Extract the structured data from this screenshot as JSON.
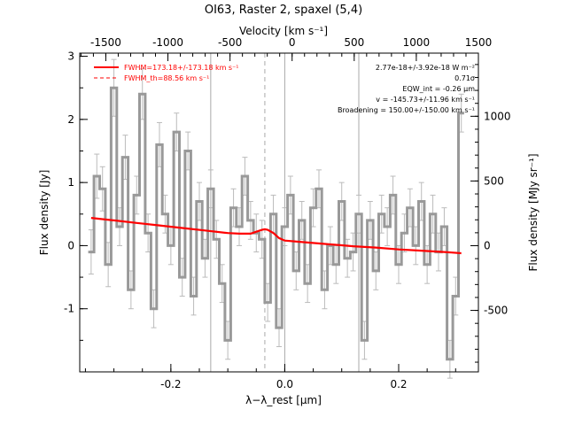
{
  "chart_data": {
    "type": "line",
    "title": "OI63, Raster 2, spaxel (5,4)",
    "top_axis_label": "Velocity [km s⁻¹]",
    "xlabel": "λ−λ_rest [μm]",
    "ylabel_left": "Flux density [Jy]",
    "ylabel_right": "Flux density [MJy sr⁻¹]",
    "xlim": [
      -0.36,
      0.34
    ],
    "ylim": [
      -2.0,
      3.05
    ],
    "top_axis_range": [
      -1710,
      1500
    ],
    "right_axis_range": [
      -975,
      1488
    ],
    "bottom_ticks": [
      "-0.2",
      "0.0",
      "0.2"
    ],
    "bottom_tick_values": [
      -0.2,
      0.0,
      0.2
    ],
    "left_ticks": [
      "-1",
      "0",
      "1",
      "2",
      "3"
    ],
    "left_tick_values": [
      -1,
      0,
      1,
      2,
      3
    ],
    "top_ticks": [
      "-1500",
      "-1000",
      "-500",
      "0",
      "500",
      "1000",
      "1500"
    ],
    "top_tick_values": [
      -1500,
      -1000,
      -500,
      0,
      500,
      1000,
      1500
    ],
    "right_ticks": [
      "-500",
      "0",
      "500",
      "1000"
    ],
    "right_tick_values": [
      -500,
      0,
      500,
      1000
    ],
    "vertical_lines_solid": [
      -0.13,
      0.0,
      0.13
    ],
    "vertical_line_dashed": -0.035,
    "legend": {
      "fwhm": "FWHM=173.18+/-173.18 km s⁻¹",
      "fwhm_th": "FWHM_th=88.56 km s⁻¹"
    },
    "annotations": {
      "flux": "2.77e-18+/-3.92e-18 W m⁻²",
      "sigma": "0.71σ",
      "eqw": "EQW_int = -0.26 μm",
      "velocity": "v = -145.73+/-11.96 km s⁻¹",
      "broadening": "Broadening = 150.00+/-150.00 km s⁻¹"
    },
    "series": [
      {
        "role": "spectrum",
        "color": "#999999",
        "x": [
          -0.34,
          -0.33,
          -0.32,
          -0.31,
          -0.3,
          -0.29,
          -0.28,
          -0.27,
          -0.26,
          -0.25,
          -0.24,
          -0.23,
          -0.22,
          -0.21,
          -0.2,
          -0.19,
          -0.18,
          -0.17,
          -0.16,
          -0.15,
          -0.14,
          -0.13,
          -0.12,
          -0.11,
          -0.1,
          -0.09,
          -0.08,
          -0.07,
          -0.06,
          -0.05,
          -0.04,
          -0.03,
          -0.02,
          -0.01,
          0.0,
          0.01,
          0.02,
          0.03,
          0.04,
          0.05,
          0.06,
          0.07,
          0.08,
          0.09,
          0.1,
          0.11,
          0.12,
          0.13,
          0.14,
          0.15,
          0.16,
          0.17,
          0.18,
          0.19,
          0.2,
          0.21,
          0.22,
          0.23,
          0.24,
          0.25,
          0.26,
          0.27,
          0.28,
          0.29,
          0.3,
          0.31
        ],
        "y": [
          -0.1,
          1.1,
          0.9,
          -0.3,
          2.5,
          0.3,
          1.4,
          -0.7,
          0.8,
          2.4,
          0.2,
          -1.0,
          1.6,
          0.5,
          0.0,
          1.8,
          -0.5,
          1.5,
          -0.8,
          0.7,
          -0.2,
          0.9,
          0.1,
          -0.6,
          -1.5,
          0.6,
          0.3,
          1.1,
          0.4,
          0.2,
          0.1,
          -0.9,
          0.5,
          -1.3,
          0.3,
          0.8,
          -0.4,
          0.4,
          -0.6,
          0.6,
          0.9,
          -0.7,
          0.0,
          -0.3,
          0.7,
          -0.2,
          -0.1,
          0.5,
          -1.5,
          0.4,
          -0.4,
          0.5,
          0.3,
          0.8,
          -0.3,
          0.2,
          0.6,
          0.0,
          0.7,
          -0.3,
          0.5,
          -0.1,
          0.3,
          -1.8,
          -0.8,
          2.1
        ],
        "yerr": [
          0.35,
          0.35,
          0.35,
          0.35,
          0.45,
          0.3,
          0.35,
          0.3,
          0.3,
          0.4,
          0.3,
          0.3,
          0.35,
          0.3,
          0.3,
          0.3,
          0.3,
          0.3,
          0.3,
          0.3,
          0.3,
          0.3,
          0.3,
          0.3,
          0.3,
          0.3,
          0.3,
          0.3,
          0.3,
          0.3,
          0.3,
          0.3,
          0.3,
          0.3,
          0.3,
          0.3,
          0.3,
          0.3,
          0.3,
          0.3,
          0.3,
          0.3,
          0.3,
          0.3,
          0.3,
          0.3,
          0.3,
          0.3,
          0.3,
          0.3,
          0.3,
          0.3,
          0.3,
          0.3,
          0.3,
          0.3,
          0.3,
          0.3,
          0.3,
          0.3,
          0.3,
          0.3,
          0.3,
          0.3,
          0.3,
          0.3
        ]
      },
      {
        "role": "fit",
        "color": "#ff0000",
        "x": [
          -0.34,
          -0.3,
          -0.26,
          -0.22,
          -0.18,
          -0.14,
          -0.1,
          -0.08,
          -0.06,
          -0.05,
          -0.04,
          -0.035,
          -0.03,
          -0.02,
          -0.01,
          0.0,
          0.04,
          0.08,
          0.12,
          0.16,
          0.2,
          0.24,
          0.28,
          0.31
        ],
        "y": [
          0.44,
          0.4,
          0.36,
          0.32,
          0.28,
          0.24,
          0.2,
          0.19,
          0.19,
          0.22,
          0.25,
          0.26,
          0.25,
          0.2,
          0.12,
          0.08,
          0.05,
          0.02,
          -0.01,
          -0.03,
          -0.06,
          -0.08,
          -0.1,
          -0.12
        ]
      }
    ]
  }
}
